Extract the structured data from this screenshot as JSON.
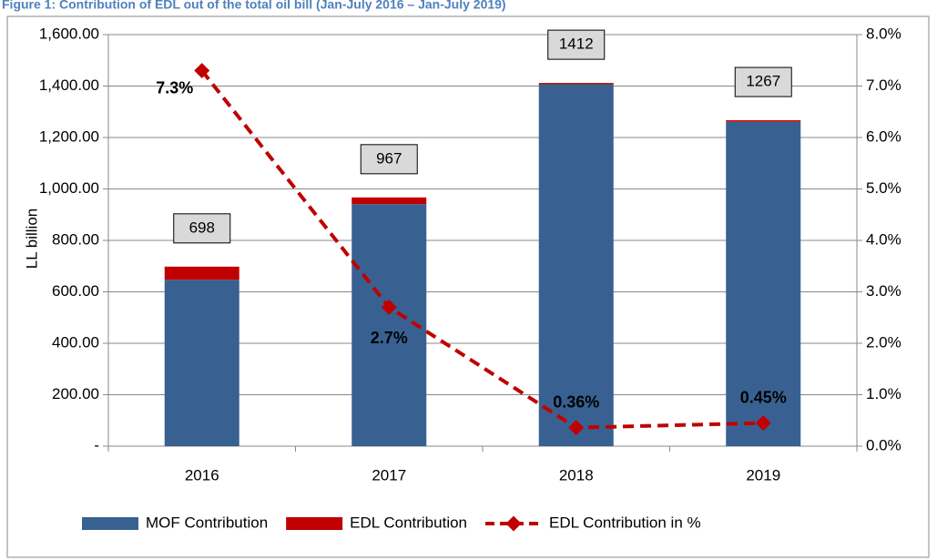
{
  "chart_data": {
    "type": "bar_line",
    "title": "Figure 1: Contribution of EDL out of the total oil bill (Jan-July 2016 – Jan-July 2019)",
    "ylabel": "LL billion",
    "categories": [
      "2016",
      "2017",
      "2018",
      "2019"
    ],
    "series": [
      {
        "name": "MOF Contribution",
        "type": "bar",
        "color": "#386192",
        "values": [
          647,
          941,
          1407,
          1261
        ]
      },
      {
        "name": "EDL Contribution",
        "type": "bar",
        "color": "#c00000",
        "values": [
          51,
          26,
          5,
          6
        ]
      },
      {
        "name": "EDL Contribution in %",
        "type": "line",
        "axis": "y2",
        "color": "#c00000",
        "values": [
          7.3,
          2.7,
          0.36,
          0.45
        ],
        "value_labels": [
          "7.3%",
          "2.7%",
          "0.36%",
          "0.45%"
        ]
      }
    ],
    "totals": [
      698,
      967,
      1412,
      1267
    ],
    "ylim": [
      0,
      1600
    ],
    "yticks": [
      {
        "value": 0,
        "label": "-"
      },
      {
        "value": 200,
        "label": "200.00"
      },
      {
        "value": 400,
        "label": "400.00"
      },
      {
        "value": 600,
        "label": "600.00"
      },
      {
        "value": 800,
        "label": "800.00"
      },
      {
        "value": 1000,
        "label": "1,000.00"
      },
      {
        "value": 1200,
        "label": "1,200.00"
      },
      {
        "value": 1400,
        "label": "1,400.00"
      },
      {
        "value": 1600,
        "label": "1,600.00"
      }
    ],
    "y2lim": [
      0,
      8
    ],
    "y2ticks": [
      {
        "value": 0,
        "label": "0.0%"
      },
      {
        "value": 1,
        "label": "1.0%"
      },
      {
        "value": 2,
        "label": "2.0%"
      },
      {
        "value": 3,
        "label": "3.0%"
      },
      {
        "value": 4,
        "label": "4.0%"
      },
      {
        "value": 5,
        "label": "5.0%"
      },
      {
        "value": 6,
        "label": "6.0%"
      },
      {
        "value": 7,
        "label": "7.0%"
      },
      {
        "value": 8,
        "label": "8.0%"
      }
    ],
    "grid": true
  }
}
